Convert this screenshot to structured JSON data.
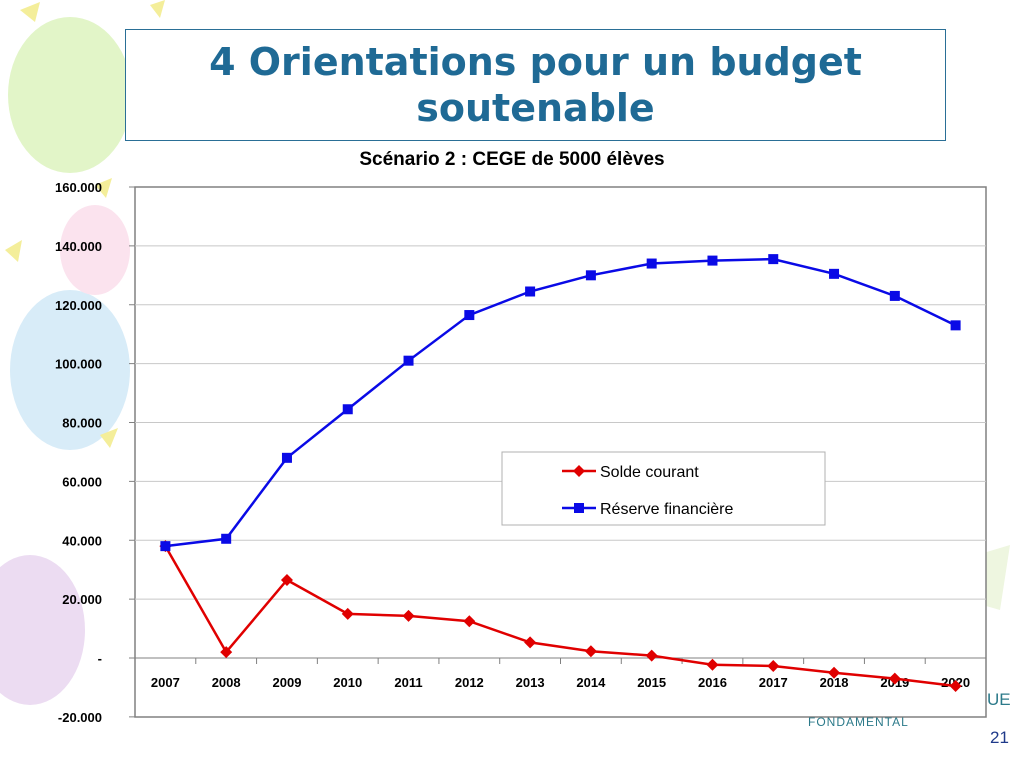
{
  "slide": {
    "title": "4 Orientations pour un budget soutenable",
    "footer_word": "FONDAMENTAL",
    "footer_partial": "UE",
    "page_number": "21"
  },
  "colors": {
    "title": "#1f6a95",
    "solde": "#e00000",
    "reserve": "#0a0ae6",
    "grid": "#c8c8c8"
  },
  "chart_data": {
    "type": "line",
    "title": "Scénario 2 : CEGE de 5000 élèves",
    "xlabel": "",
    "ylabel": "",
    "categories": [
      "2007",
      "2008",
      "2009",
      "2010",
      "2011",
      "2012",
      "2013",
      "2014",
      "2015",
      "2016",
      "2017",
      "2018",
      "2019",
      "2020"
    ],
    "ylim": [
      -20000,
      160000
    ],
    "yticks": [
      160000,
      140000,
      120000,
      100000,
      80000,
      60000,
      40000,
      20000,
      0,
      -20000
    ],
    "ytick_labels": [
      "160.000",
      "140.000",
      "120.000",
      "100.000",
      "80.000",
      "60.000",
      "40.000",
      "20.000",
      "-",
      "-20.000"
    ],
    "grid": true,
    "legend_position": "center-right",
    "series": [
      {
        "name": "Solde courant",
        "marker": "diamond",
        "color": "#e00000",
        "values": [
          38000,
          2000,
          26500,
          15000,
          14300,
          12500,
          5300,
          2300,
          800,
          -2300,
          -2700,
          -5000,
          -7000,
          -9500
        ]
      },
      {
        "name": "Réserve financière",
        "marker": "square",
        "color": "#0a0ae6",
        "values": [
          38000,
          40500,
          68000,
          84500,
          101000,
          116500,
          124500,
          130000,
          134000,
          135000,
          135500,
          130500,
          123000,
          113000
        ]
      }
    ]
  }
}
